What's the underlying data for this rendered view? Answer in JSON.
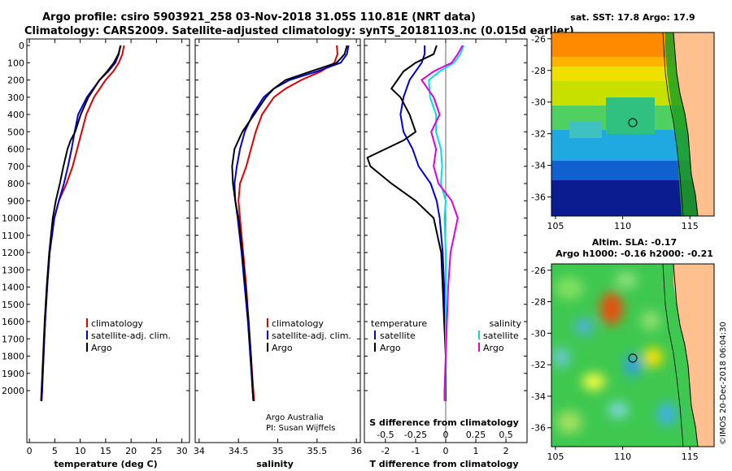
{
  "header": {
    "line1": "Argo profile: csiro 5903921_258 03-Nov-2018 31.05S 110.81E (NRT data)",
    "line2": "Climatology: CARS2009. Satellite-adjusted climatology: synTS_20181103.nc (0.015d earlier)"
  },
  "colors": {
    "climatology": "#e00000",
    "satellite": "#0000dd",
    "argo": "#000000",
    "argo_salinity": "#e000e0",
    "satellite_salinity": "#00e0e0"
  },
  "panels": {
    "temperature": {
      "xlabel": "temperature (deg C)",
      "xticks": [
        "0",
        "5",
        "10",
        "15",
        "20",
        "25",
        "30"
      ],
      "legend": [
        "climatology",
        "satellite-adj. clim.",
        "Argo"
      ]
    },
    "salinity": {
      "xlabel": "salinity",
      "xticks": [
        "34",
        "34.5",
        "35",
        "35.5",
        "36"
      ],
      "legend": [
        "climatology",
        "satellite-adj. clim.",
        "Argo"
      ],
      "credit1": "Argo Australia",
      "credit2": "PI: Susan Wijffels"
    },
    "difference": {
      "xlabel": "T difference from climatology",
      "xticks": [
        "-2",
        "-1",
        "0",
        "1",
        "2"
      ],
      "sxlabel": "S difference from climatology",
      "sxticks": [
        "-0.5",
        "-0.25",
        "0",
        "0.25",
        "0.5"
      ],
      "legend_temp_head": "temperature",
      "legend_temp": [
        "satellite",
        "Argo"
      ],
      "legend_sal_head": "salinity",
      "legend_sal": [
        "satellite",
        "Argo"
      ]
    }
  },
  "depth_axis": {
    "ticks": [
      "0",
      "100",
      "200",
      "300",
      "400",
      "500",
      "600",
      "700",
      "800",
      "900",
      "1000",
      "1100",
      "1200",
      "1300",
      "1400",
      "1500",
      "1600",
      "1700",
      "1800",
      "1900",
      "2000"
    ]
  },
  "map_sst": {
    "title": "sat. SST: 17.8 Argo: 17.9",
    "yticks": [
      "-26",
      "-28",
      "-30",
      "-32",
      "-34",
      "-36"
    ],
    "xticks": [
      "105",
      "110",
      "115"
    ]
  },
  "map_sla": {
    "title1": "Altim. SLA: -0.17",
    "title2": "Argo h1000: -0.16 h2000: -0.21",
    "yticks": [
      "-26",
      "-28",
      "-30",
      "-32",
      "-34",
      "-36"
    ],
    "xticks": [
      "105",
      "110",
      "115"
    ]
  },
  "footer": {
    "stamp": "©IMOS 20-Dec-2018 06:04:30"
  },
  "chart_data": [
    {
      "type": "line",
      "xlabel": "temperature (deg C)",
      "ylabel": "",
      "xlim": [
        -0.5,
        31.5
      ],
      "ylim": [
        2080,
        0
      ],
      "y_axis": "depth (inverted)",
      "series": [
        {
          "name": "climatology",
          "depth": [
            0,
            50,
            100,
            150,
            200,
            300,
            400,
            500,
            600,
            700,
            800,
            900,
            1000,
            1200,
            1400,
            1600,
            1800,
            2000,
            2060
          ],
          "values": [
            18.6,
            18.3,
            17.6,
            16.5,
            15.0,
            12.7,
            11.2,
            10.3,
            9.4,
            8.5,
            7.3,
            5.8,
            4.9,
            4.0,
            3.5,
            3.1,
            2.8,
            2.5,
            2.4
          ]
        },
        {
          "name": "satellite-adj. clim.",
          "depth": [
            0,
            50,
            100,
            150,
            200,
            300,
            400,
            500,
            600,
            700,
            800,
            900,
            1000,
            1200,
            1400,
            1600,
            1800,
            2000,
            2060
          ],
          "values": [
            17.9,
            17.6,
            16.9,
            15.5,
            13.8,
            11.3,
            9.6,
            8.9,
            8.3,
            7.6,
            6.8,
            5.8,
            4.9,
            4.0,
            3.5,
            3.1,
            2.8,
            2.5,
            2.4
          ]
        },
        {
          "name": "Argo",
          "depth": [
            0,
            50,
            100,
            150,
            200,
            300,
            400,
            500,
            550,
            600,
            700,
            800,
            900,
            1000,
            1200,
            1400,
            1600,
            1800,
            2000,
            2060
          ],
          "values": [
            18.0,
            17.5,
            16.6,
            15.3,
            13.8,
            11.6,
            10.1,
            9.0,
            8.1,
            7.5,
            6.7,
            6.0,
            5.2,
            4.6,
            3.9,
            3.4,
            3.0,
            2.7,
            2.4,
            2.3
          ]
        }
      ]
    },
    {
      "type": "line",
      "xlabel": "salinity",
      "ylabel": "",
      "xlim": [
        33.95,
        36.05
      ],
      "ylim": [
        2080,
        0
      ],
      "y_axis": "depth (inverted)",
      "series": [
        {
          "name": "climatology",
          "depth": [
            0,
            50,
            100,
            150,
            200,
            250,
            300,
            400,
            500,
            600,
            700,
            800,
            900,
            1000,
            1200,
            1400,
            1600,
            1800,
            2000,
            2060
          ],
          "values": [
            35.75,
            35.76,
            35.72,
            35.55,
            35.3,
            35.1,
            34.95,
            34.8,
            34.72,
            34.66,
            34.6,
            34.52,
            34.5,
            34.52,
            34.56,
            34.6,
            34.63,
            34.66,
            34.69,
            34.7
          ]
        },
        {
          "name": "satellite-adj. clim.",
          "depth": [
            0,
            50,
            100,
            150,
            200,
            250,
            300,
            400,
            500,
            600,
            700,
            800,
            900,
            1000,
            1200,
            1400,
            1600,
            1800,
            2000,
            2060
          ],
          "values": [
            35.9,
            35.88,
            35.8,
            35.5,
            35.15,
            34.95,
            34.82,
            34.68,
            34.58,
            34.52,
            34.48,
            34.45,
            34.46,
            34.49,
            34.54,
            34.58,
            34.62,
            34.65,
            34.68,
            34.69
          ]
        },
        {
          "name": "Argo",
          "depth": [
            0,
            50,
            100,
            150,
            200,
            250,
            300,
            400,
            500,
            600,
            700,
            800,
            900,
            1000,
            1200,
            1400,
            1600,
            1800,
            2000,
            2060
          ],
          "values": [
            35.88,
            35.85,
            35.75,
            35.42,
            35.1,
            34.95,
            34.85,
            34.7,
            34.55,
            34.45,
            34.42,
            34.43,
            34.46,
            34.5,
            34.55,
            34.59,
            34.63,
            34.66,
            34.68,
            34.69
          ]
        }
      ]
    },
    {
      "type": "line",
      "xlabel": "T difference from climatology",
      "ylabel": "",
      "xlim": [
        -2.7,
        2.7
      ],
      "secondary_xlabel": "S difference from climatology",
      "secondary_xlim": [
        -0.675,
        0.675
      ],
      "ylim": [
        2080,
        0
      ],
      "y_axis": "depth (inverted)",
      "series": [
        {
          "name": "temperature satellite",
          "depth": [
            0,
            50,
            100,
            150,
            200,
            300,
            400,
            500,
            600,
            700,
            800,
            900,
            1000,
            1200,
            1400,
            1600,
            1800,
            2000,
            2060
          ],
          "values": [
            -0.7,
            -0.7,
            -0.8,
            -1.0,
            -1.2,
            -1.4,
            -1.5,
            -1.4,
            -1.1,
            -0.9,
            -0.5,
            -0.3,
            -0.2,
            -0.1,
            -0.05,
            0,
            0,
            0,
            0
          ]
        },
        {
          "name": "temperature Argo",
          "depth": [
            0,
            50,
            100,
            150,
            200,
            250,
            300,
            400,
            500,
            550,
            600,
            650,
            700,
            800,
            900,
            1000,
            1200,
            1400,
            1600,
            1800,
            2000,
            2060
          ],
          "values": [
            -0.3,
            -0.4,
            -1.0,
            -1.4,
            -1.6,
            -1.8,
            -1.5,
            -1.2,
            -1.0,
            -1.4,
            -2.0,
            -2.6,
            -2.5,
            -1.8,
            -1.0,
            -0.4,
            -0.15,
            -0.1,
            -0.05,
            0,
            0,
            0
          ]
        },
        {
          "name": "salinity satellite",
          "depth": [
            0,
            50,
            100,
            150,
            200,
            300,
            400,
            500,
            600,
            700,
            800,
            900,
            1000,
            1200,
            1400,
            1600,
            1800,
            2000,
            2060
          ],
          "values": [
            0.15,
            0.12,
            0.07,
            -0.05,
            -0.14,
            -0.13,
            -0.08,
            -0.08,
            -0.04,
            -0.03,
            -0.04,
            0.0,
            -0.01,
            0.0,
            0.0,
            0.0,
            0.0,
            -0.005,
            -0.005
          ]
        },
        {
          "name": "salinity Argo",
          "depth": [
            0,
            50,
            100,
            150,
            200,
            300,
            400,
            500,
            600,
            700,
            800,
            900,
            1000,
            1200,
            1400,
            1600,
            1800,
            2000,
            2060
          ],
          "values": [
            0.14,
            0.1,
            0.05,
            -0.1,
            -0.2,
            -0.1,
            -0.05,
            -0.12,
            -0.08,
            -0.1,
            -0.06,
            0.05,
            0.1,
            0.04,
            0.02,
            0.01,
            0.0,
            -0.01,
            -0.01
          ]
        }
      ]
    }
  ]
}
